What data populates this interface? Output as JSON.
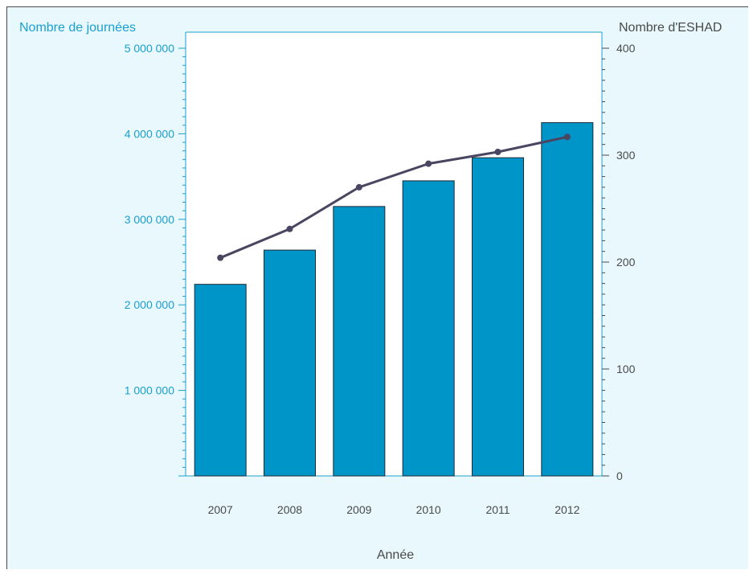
{
  "chart_data": {
    "type": "bar",
    "title": "",
    "xlabel": "Année",
    "categories": [
      "2007",
      "2008",
      "2009",
      "2010",
      "2011",
      "2012"
    ],
    "y_left": {
      "label": "Nombre de journées",
      "range": [
        0,
        5000000
      ],
      "ticks": [
        1000000,
        2000000,
        3000000,
        4000000,
        5000000
      ],
      "tick_labels": [
        "1 000 000",
        "2 000 000",
        "3 000 000",
        "4 000 000",
        "5 000 000"
      ],
      "color": "#1a9fd0"
    },
    "y_right": {
      "label": "Nombre d'ESHAD",
      "range": [
        0,
        400
      ],
      "ticks": [
        0,
        100,
        200,
        300,
        400
      ],
      "tick_labels": [
        "0",
        "100",
        "200",
        "300",
        "400"
      ],
      "color": "#4a4a4a"
    },
    "series": [
      {
        "kind": "bar",
        "axis": "left",
        "values": [
          2240000,
          2640000,
          3150000,
          3450000,
          3720000,
          4130000
        ],
        "color": "#0095c8"
      },
      {
        "kind": "line",
        "axis": "right",
        "values": [
          204,
          231,
          270,
          292,
          303,
          317
        ],
        "color": "#4a4560"
      }
    ],
    "grid": false,
    "legend": "none"
  }
}
